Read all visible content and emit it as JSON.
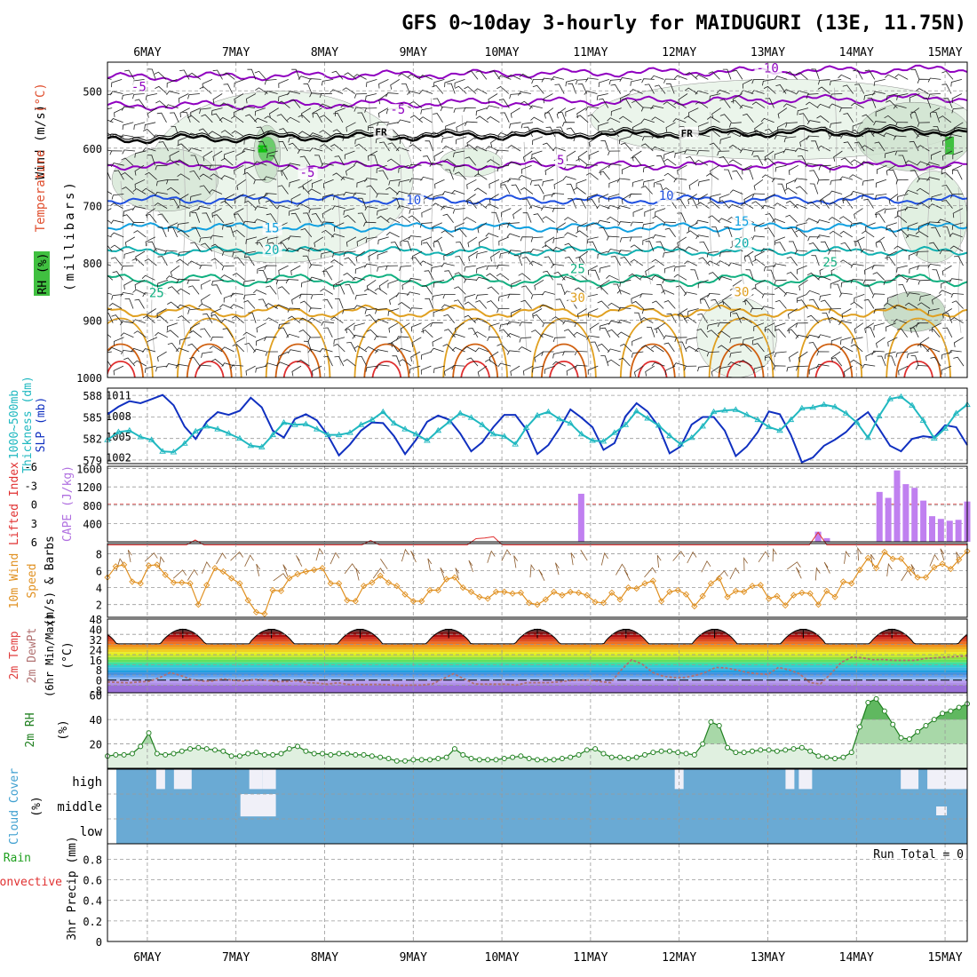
{
  "chart_data": {
    "type": "meteogram",
    "title": "GFS 0~10day 3-hourly for MAIDUGURI (13E, 11.75N)",
    "dates": [
      "6MAY",
      "7MAY",
      "8MAY",
      "9MAY",
      "10MAY",
      "11MAY",
      "12MAY",
      "13MAY",
      "14MAY",
      "15MAY"
    ],
    "time_range": [
      -0.45,
      9.25
    ],
    "panels": [
      {
        "id": "upper-air",
        "type": "contour",
        "ylabel_parts": [
          {
            "text": "Wind (m/s)",
            "color": "#000000"
          },
          {
            "text": "Temperature (°C)",
            "color": "#333333"
          },
          {
            "text": "RH (%)",
            "color": "#000000"
          },
          {
            "text": "(millibars)",
            "color": "#000000"
          }
        ],
        "ylabel_colors": {
          "Temperature": "#e05030",
          "Temperature_blue": "#2040c0"
        },
        "y_ticks": [
          500,
          600,
          700,
          800,
          900,
          1000
        ],
        "ylim": [
          1000,
          450
        ],
        "freezing_label": "FR",
        "isotherms": [
          {
            "value": -10,
            "label": "-10",
            "mean_level": 470,
            "color": "#9000c0"
          },
          {
            "value": -5,
            "label": "-5",
            "mean_level": 520,
            "color": "#9000c0"
          },
          {
            "value": 0,
            "label": "FR",
            "mean_level": 578,
            "color": "#000000"
          },
          {
            "value": 5,
            "label": "5",
            "mean_level": 630,
            "color": "#9000c0"
          },
          {
            "value": 10,
            "label": "10",
            "mean_level": 690,
            "color": "#2050e0"
          },
          {
            "value": 15,
            "label": "15",
            "mean_level": 738,
            "color": "#10a0e0"
          },
          {
            "value": 20,
            "label": "20",
            "mean_level": 780,
            "color": "#10b0b0"
          },
          {
            "value": 25,
            "label": "25",
            "mean_level": 830,
            "color": "#10b080"
          },
          {
            "value": 30,
            "label": "30",
            "mean_level": 885,
            "color": "#e0a020"
          }
        ],
        "contour_labels": [
          {
            "text": "-10",
            "t": 6.95,
            "p": 468,
            "color": "#9000c0"
          },
          {
            "text": "-5",
            "t": -0.1,
            "p": 500,
            "color": "#9000c0"
          },
          {
            "text": "-5",
            "t": 2.82,
            "p": 540,
            "color": "#9000c0"
          },
          {
            "text": "FR",
            "t": 2.65,
            "p": 578,
            "color": "#000000"
          },
          {
            "text": "FR",
            "t": 6.1,
            "p": 580,
            "color": "#000000"
          },
          {
            "text": "-5",
            "t": 1.8,
            "p": 650,
            "color": "#9000c0"
          },
          {
            "text": "5",
            "t": 4.7,
            "p": 628,
            "color": "#9000c0"
          },
          {
            "text": "10",
            "t": 3.0,
            "p": 698,
            "color": "#2050e0"
          },
          {
            "text": "10",
            "t": 5.85,
            "p": 690,
            "color": "#2050e0"
          },
          {
            "text": "15",
            "t": 1.4,
            "p": 747,
            "color": "#10a0e0"
          },
          {
            "text": "15",
            "t": 6.7,
            "p": 735,
            "color": "#10a0e0"
          },
          {
            "text": "20",
            "t": 1.4,
            "p": 785,
            "color": "#10b0b0"
          },
          {
            "text": "20",
            "t": 6.7,
            "p": 773,
            "color": "#10b0b0"
          },
          {
            "text": "25",
            "t": 4.85,
            "p": 818,
            "color": "#10b080"
          },
          {
            "text": "25",
            "t": 7.7,
            "p": 806,
            "color": "#10b080"
          },
          {
            "text": "25",
            "t": 0.1,
            "p": 860,
            "color": "#10b080"
          },
          {
            "text": "30",
            "t": 4.85,
            "p": 868,
            "color": "#e0a020"
          },
          {
            "text": "30",
            "t": 6.7,
            "p": 858,
            "color": "#e0a020"
          }
        ]
      },
      {
        "id": "thickness-slp",
        "type": "line",
        "ylabel_left": "1000~500mb Thickness (dm)",
        "ylabel_right": "SLP (mb)",
        "left_ticks": [
          579,
          582,
          585,
          588
        ],
        "right_ticks": [
          1002,
          1005,
          1008,
          1011
        ],
        "left_range": [
          578.5,
          589.0
        ],
        "right_range": [
          1001.0,
          1012.0
        ],
        "series": [
          {
            "name": "SLP (mb)",
            "axis": "right",
            "color": "#1030c0",
            "values": [
              1008.2,
              1009.3,
              1010.1,
              1009.8,
              1010.4,
              1011.0,
              1009.5,
              1006.4,
              1004.6,
              1007.1,
              1008.5,
              1008.1,
              1008.7,
              1010.6,
              1009.2,
              1005.8,
              1004.8,
              1007.5,
              1008.2,
              1007.3,
              1005.1,
              1002.2,
              1003.8,
              1005.8,
              1007.0,
              1006.9,
              1005.0,
              1002.4,
              1004.5,
              1007.1,
              1008.0,
              1007.4,
              1005.4,
              1002.8,
              1004.1,
              1006.3,
              1008.1,
              1008.1,
              1006.0,
              1002.4,
              1003.7,
              1006.1,
              1008.9,
              1007.7,
              1006.3,
              1003.0,
              1004.0,
              1007.9,
              1009.8,
              1008.6,
              1006.4,
              1002.5,
              1003.5,
              1006.7,
              1007.8,
              1007.8,
              1005.8,
              1002.1,
              1003.5,
              1005.6,
              1008.6,
              1008.2,
              1005.2,
              1001.2,
              1001.9,
              1003.6,
              1004.5,
              1005.6,
              1007.3,
              1008.5,
              1006.1,
              1003.6,
              1002.8,
              1004.6,
              1005.0,
              1004.8,
              1006.6,
              1006.3,
              1003.7
            ]
          },
          {
            "name": "Thickness (dm)",
            "axis": "left",
            "color": "#20b8c0",
            "values": [
              581.8,
              582.9,
              583.1,
              582.2,
              581.8,
              580.2,
              580.1,
              581.3,
              583.0,
              583.7,
              583.3,
              582.7,
              582.0,
              581.0,
              580.8,
              582.5,
              584.2,
              583.9,
              584.0,
              583.3,
              582.5,
              582.5,
              582.8,
              583.9,
              584.6,
              585.7,
              584.1,
              583.3,
              582.6,
              581.7,
              583.1,
              584.3,
              585.5,
              584.9,
              583.9,
              582.6,
              582.3,
              581.2,
              583.5,
              585.2,
              585.7,
              584.7,
              584.1,
              582.6,
              581.7,
              581.6,
              582.8,
              583.9,
              585.8,
              584.8,
              583.8,
              582.4,
              581.2,
              582.1,
              583.7,
              585.7,
              585.9,
              586.0,
              585.3,
              584.6,
              583.6,
              583.1,
              584.6,
              586.2,
              586.3,
              586.7,
              586.4,
              585.5,
              584.2,
              582.1,
              585.1,
              587.5,
              587.8,
              586.6,
              584.5,
              582.0,
              583.4,
              585.5,
              586.7
            ]
          }
        ]
      },
      {
        "id": "cape-li",
        "type": "bar+line",
        "ylabel_left": "Lifted Index",
        "ylabel_right": "CAPE (J/kg)",
        "left_ticks_labels": [
          "6",
          "3",
          "0",
          "-3",
          "-6"
        ],
        "right_ticks": [
          400,
          800,
          1200,
          1600
        ],
        "right_range": [
          0,
          1650
        ],
        "li_range": [
          6,
          -6
        ],
        "cape_values": [
          0,
          0,
          0,
          0,
          0,
          0,
          0,
          0,
          0,
          0,
          0,
          0,
          0,
          0,
          0,
          0,
          0,
          0,
          0,
          0,
          0,
          0,
          0,
          0,
          0,
          0,
          0,
          0,
          0,
          0,
          0,
          0,
          0,
          0,
          0,
          0,
          0,
          0,
          0,
          0,
          0,
          0,
          0,
          0,
          0,
          0,
          0,
          0,
          0,
          0,
          0,
          0,
          0,
          0,
          1050,
          0,
          0,
          0,
          0,
          0,
          0,
          0,
          0,
          0,
          0,
          0,
          0,
          0,
          0,
          0,
          0,
          0,
          0,
          0,
          0,
          0,
          0,
          0,
          0,
          0,
          0,
          220,
          80,
          0,
          0,
          0,
          0,
          0,
          1090,
          960,
          1560,
          1260,
          1180,
          900,
          560,
          500,
          460,
          480,
          880
        ],
        "li_values": [
          6.5,
          6.5,
          6.5,
          6.5,
          6.5,
          6.5,
          6.5,
          6.5,
          6.5,
          6.5,
          5.7,
          6.5,
          6.5,
          6.5,
          6.5,
          6.5,
          6.5,
          6.5,
          6.5,
          6.5,
          6.5,
          6.5,
          6.5,
          6.5,
          6.5,
          6.5,
          6.5,
          6.5,
          6.5,
          6.5,
          5.8,
          6.5,
          6.5,
          6.5,
          6.5,
          6.5,
          6.5,
          6.5,
          6.5,
          6.5,
          6.5,
          6.5,
          5.5,
          5.4,
          5.2,
          6.5,
          6.5,
          6.5,
          6.5,
          6.5,
          6.5,
          6.5,
          6.5,
          6.5,
          6.5,
          6.5,
          6.5,
          6.5,
          6.5,
          6.5,
          6.5,
          6.5,
          6.5,
          6.5,
          6.5,
          6.5,
          6.5,
          6.5,
          6.5,
          6.5,
          6.5,
          6.5,
          6.5,
          6.5,
          6.5,
          6.5,
          6.5,
          6.5,
          6.5,
          6.5,
          6.5,
          4.5,
          6.5,
          6.5,
          6.5,
          6.5,
          6.5,
          6.5,
          6.5,
          6.5,
          6.5,
          6.5,
          6.5,
          6.5,
          6.5,
          6.5,
          6.5,
          6.5,
          6.5
        ],
        "li_label_note": "zero line dashed red"
      },
      {
        "id": "wind10m",
        "type": "line",
        "ylabel_parts": [
          "10m Wind",
          "Speed",
          "(m/s) & Barbs"
        ],
        "y_ticks": [
          2,
          4,
          6,
          8
        ],
        "ylim": [
          0.5,
          9.2
        ],
        "color": "#e09020",
        "values": [
          5.2,
          6.5,
          6.7,
          4.7,
          4.5,
          6.6,
          6.7,
          5.5,
          4.6,
          4.6,
          4.5,
          2.0,
          4.3,
          6.3,
          5.9,
          5.1,
          4.5,
          2.5,
          1.1,
          0.9,
          3.7,
          3.6,
          5.1,
          5.6,
          5.9,
          6.1,
          6.3,
          4.5,
          4.5,
          2.5,
          2.4,
          4.2,
          4.6,
          5.4,
          4.6,
          4.2,
          3.2,
          2.4,
          2.4,
          3.7,
          3.7,
          5.0,
          5.2,
          4.0,
          3.5,
          2.9,
          2.7,
          3.5,
          3.5,
          3.3,
          3.4,
          2.2,
          2.0,
          2.6,
          3.5,
          3.1,
          3.5,
          3.4,
          3.1,
          2.3,
          2.2,
          3.4,
          2.6,
          4.0,
          3.9,
          4.5,
          4.8,
          2.4,
          3.5,
          3.7,
          3.2,
          1.8,
          3.0,
          4.5,
          5.1,
          2.9,
          3.6,
          3.5,
          4.2,
          4.3,
          2.7,
          3.0,
          1.9,
          3.1,
          3.4,
          3.3,
          2.0,
          3.6,
          2.9,
          4.7,
          4.5,
          6.1,
          7.5,
          6.3,
          8.2,
          7.4,
          7.4,
          6.2,
          5.2,
          5.2,
          6.4,
          6.8,
          6.2,
          7.3,
          8.3
        ]
      },
      {
        "id": "temperature",
        "type": "area+line",
        "ylabel_parts": [
          "2m Temp",
          "2m DewPt",
          "(6hr Min/Max)",
          "(°C)"
        ],
        "y_ticks": [
          -8,
          0,
          8,
          16,
          24,
          32,
          40,
          48
        ],
        "y_ticks_extra": [
          -4,
          4,
          12,
          20,
          28,
          36
        ],
        "ylim": [
          -10,
          48
        ],
        "temp_min": 28.5,
        "temp_max": 40.0,
        "dewpt_values": [
          -1.5,
          -1.8,
          -2.2,
          -1.5,
          -1.0,
          2.0,
          6.0,
          3.5,
          0.5,
          -0.8,
          -0.8,
          1.0,
          -0.2,
          -0.8,
          0.5,
          0.0,
          -1.2,
          -1.2,
          -0.6,
          -2.0,
          -2.4,
          -3.2,
          -2.0,
          -3.5,
          -3.6,
          -3.5,
          -3.4,
          -3.8,
          -4.2,
          -4.0,
          -4.0,
          -3.0,
          1.0,
          5.0,
          1.0,
          -3.0,
          -3.2,
          -3.2,
          -3.2,
          -4.0,
          -2.0,
          -2.0,
          -2.0,
          -1.5,
          -0.5,
          0.0,
          0.0,
          -1.2,
          -2.0,
          8.0,
          16.0,
          12.5,
          6.0,
          3.0,
          2.0,
          2.0,
          3.5,
          6.0,
          10.0,
          9.5,
          8.0,
          6.0,
          5.0,
          4.5,
          10.0,
          8.0,
          5.0,
          -2.0,
          -3.0,
          5.0,
          14.0,
          18.0,
          17.5,
          16.0,
          16.2,
          15.5,
          15.5,
          15.5,
          17.0,
          17.5,
          18.0,
          18.5,
          19.0
        ],
        "zero_line": "dashed"
      },
      {
        "id": "rh2m",
        "type": "area+line",
        "ylabel_parts": [
          "2m RH",
          "(%)"
        ],
        "y_ticks": [
          20,
          40,
          60
        ],
        "ylim": [
          0,
          62
        ],
        "color": "#208020",
        "values": [
          10,
          11,
          11,
          12,
          18,
          29,
          12,
          11,
          12,
          14,
          16,
          17,
          16,
          15,
          14,
          10,
          10,
          12,
          13,
          11,
          11,
          12,
          16,
          18,
          14,
          12,
          12,
          11,
          12,
          12,
          11,
          11,
          10,
          9,
          8,
          6,
          6,
          7,
          7,
          7,
          8,
          9,
          16,
          11,
          8,
          7,
          7,
          7,
          8,
          9,
          10,
          8,
          7,
          7,
          7,
          8,
          9,
          11,
          15,
          16,
          12,
          9,
          9,
          8,
          9,
          11,
          13,
          14,
          14,
          13,
          12,
          11,
          20,
          38,
          35,
          17,
          13,
          13,
          14,
          15,
          15,
          14,
          15,
          16,
          17,
          14,
          10,
          9,
          8,
          9,
          13,
          34,
          54,
          57,
          47,
          36,
          25,
          24,
          30,
          35,
          40,
          45,
          47,
          50,
          53
        ]
      },
      {
        "id": "cloud-cover",
        "type": "heatmap",
        "ylabel_parts": [
          "Cloud Cover",
          "(%)"
        ],
        "rows": [
          "high",
          "middle",
          "low"
        ]
      },
      {
        "id": "precip",
        "type": "line",
        "ylabel_parts": [
          "Total / Rain",
          "Convective",
          "3hr Precip (mm)"
        ],
        "y_ticks": [
          0,
          0.2,
          0.4,
          0.6,
          0.8
        ],
        "y_tick_labels": [
          "0",
          "0.2",
          "0.4",
          "0.6",
          "0.8"
        ],
        "ylim": [
          0,
          0.95
        ],
        "run_total": "Run Total = 0"
      }
    ]
  }
}
